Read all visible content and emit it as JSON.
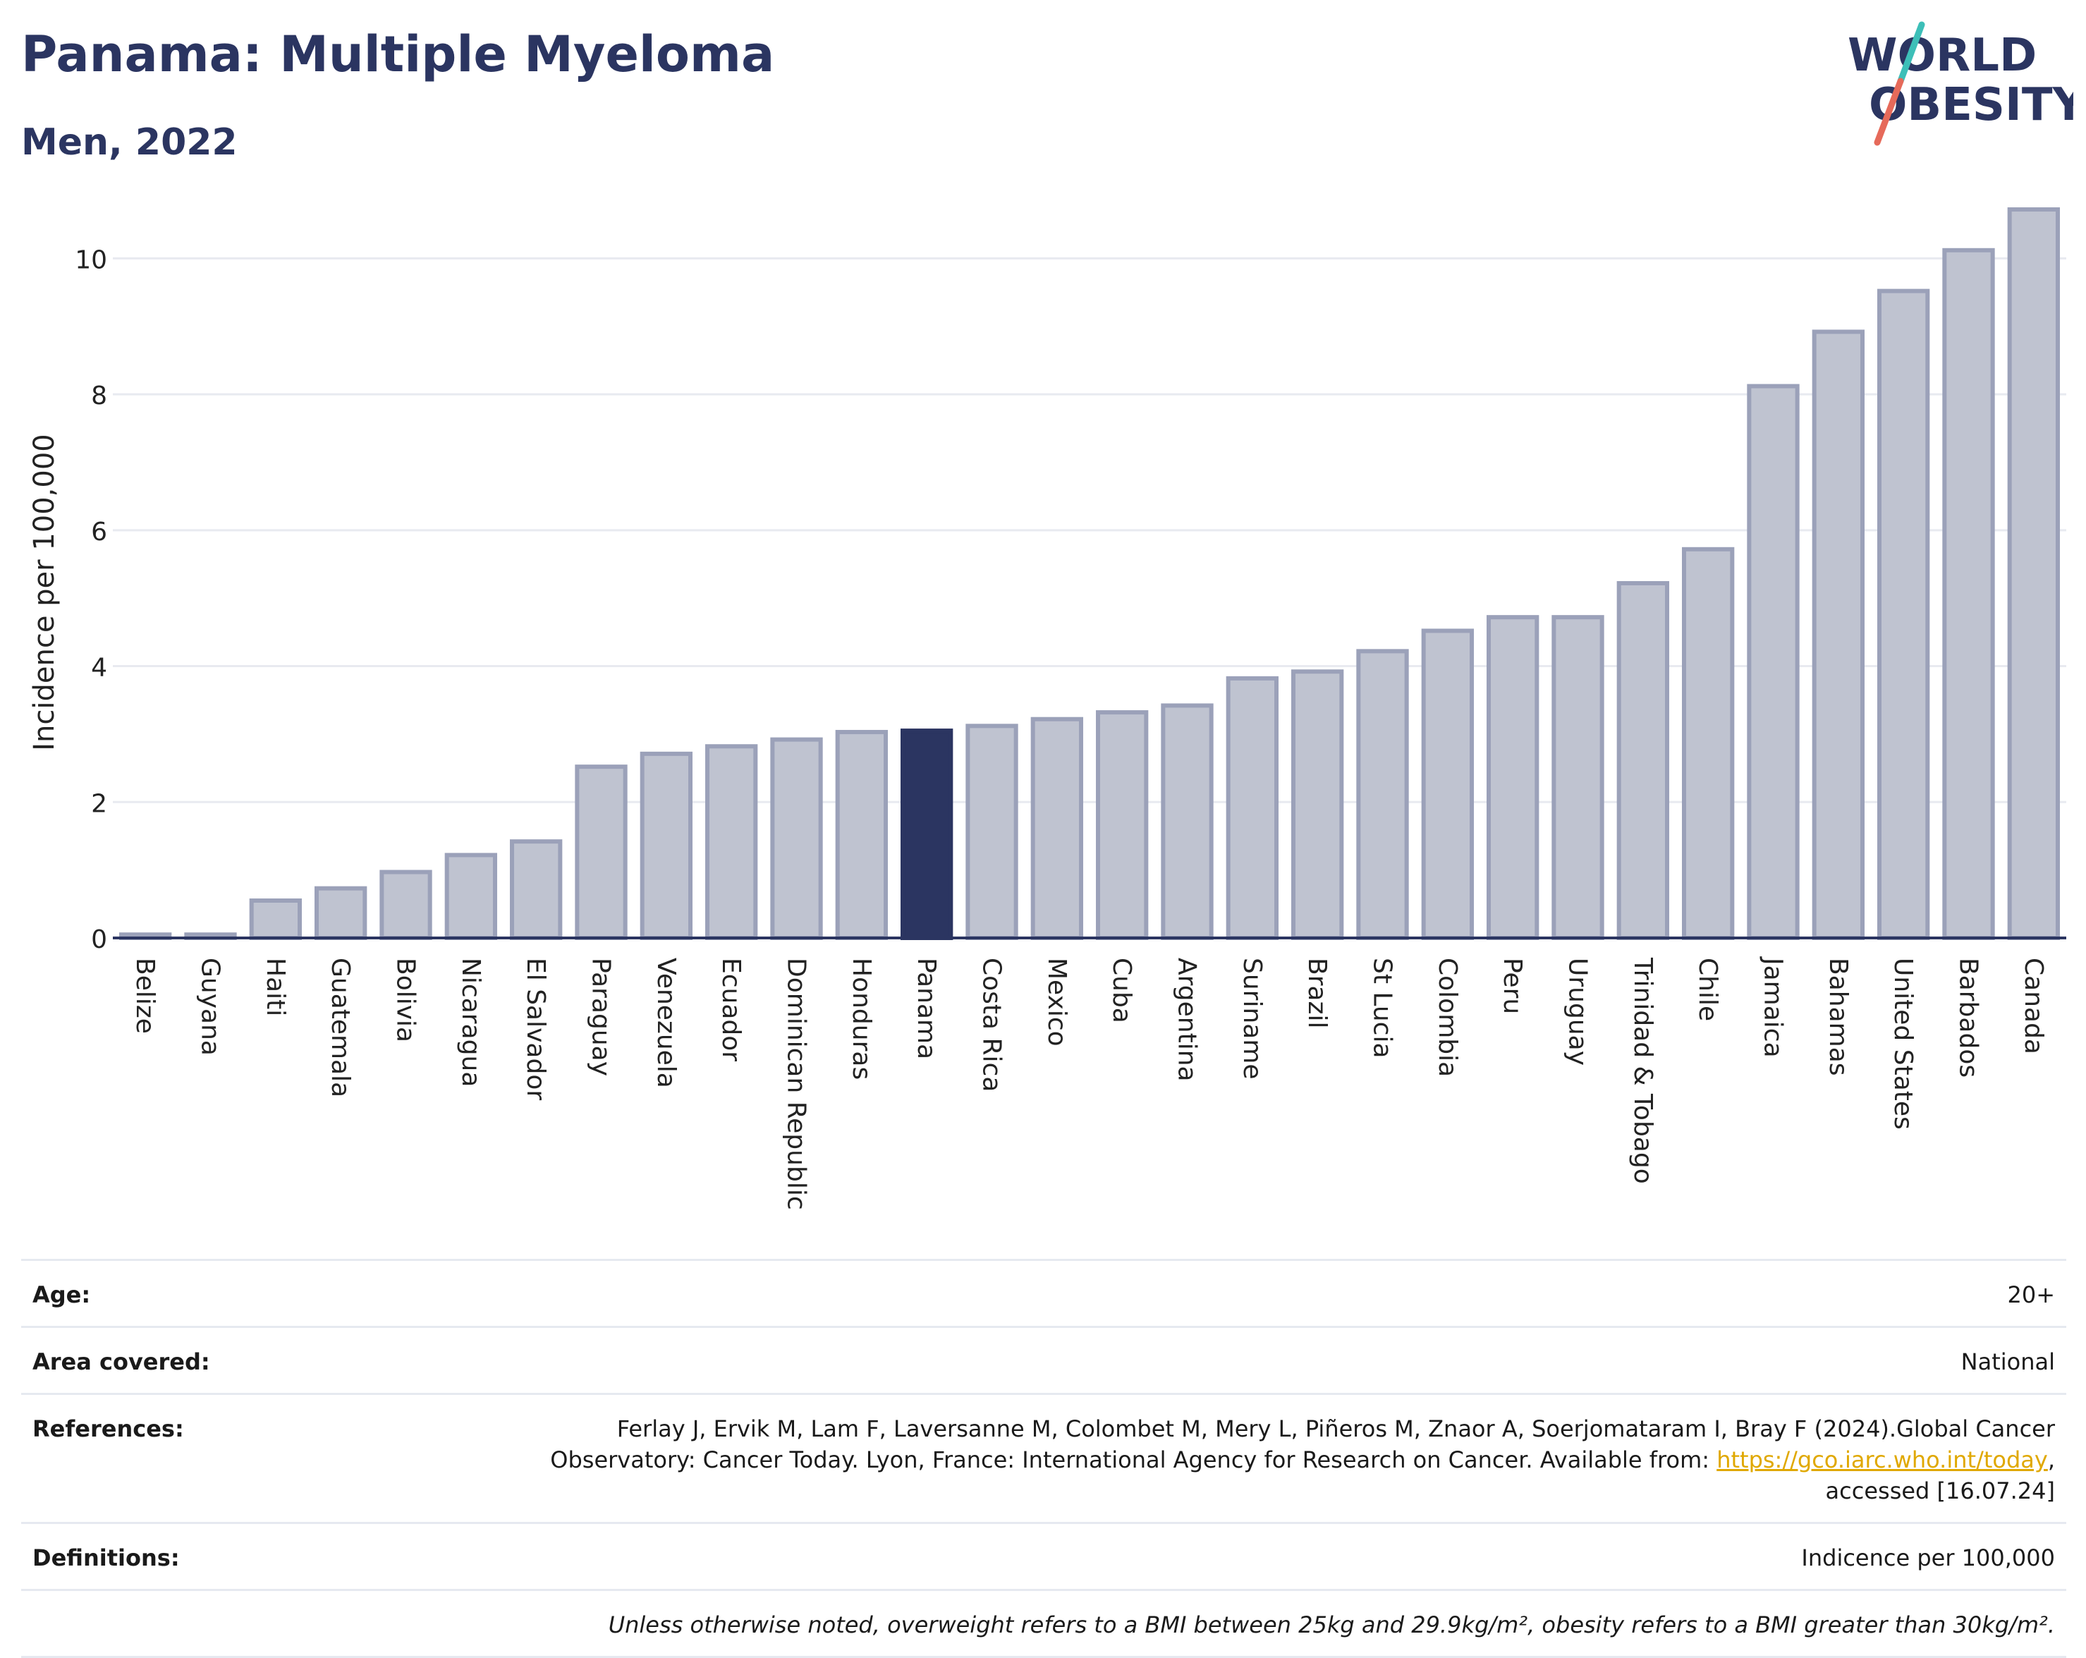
{
  "header": {
    "title": "Panama: Multiple Myeloma",
    "subtitle": "Men, 2022",
    "logo": {
      "line1": "WORLD",
      "line2": "OBESITY"
    }
  },
  "colors": {
    "title": "#2b3561",
    "bar": "#bfc3d0",
    "bar_border": "#9ba1b9",
    "highlight": "#2b3561",
    "link": "#e0a800",
    "logo_slash_teal": "#3dbfb8",
    "logo_slash_coral": "#e66a5a"
  },
  "chart_data": {
    "type": "bar",
    "ylabel": "Incidence per 100,000",
    "xlabel": "",
    "ylim": [
      0,
      11
    ],
    "yticks": [
      0,
      2,
      4,
      6,
      8,
      10
    ],
    "grid": true,
    "highlight": "Panama",
    "categories": [
      "Belize",
      "Guyana",
      "Haiti",
      "Guatemala",
      "Bolivia",
      "Nicaragua",
      "El Salvador",
      "Paraguay",
      "Venezuela",
      "Ecuador",
      "Dominican Republic",
      "Honduras",
      "Panama",
      "Costa Rica",
      "Mexico",
      "Cuba",
      "Argentina",
      "Suriname",
      "Brazil",
      "St Lucia",
      "Colombia",
      "Peru",
      "Uruguay",
      "Trinidad & Tobago",
      "Chile",
      "Jamaica",
      "Bahamas",
      "United States",
      "Barbados",
      "Canada"
    ],
    "values": [
      0.05,
      0.05,
      0.55,
      0.73,
      0.97,
      1.22,
      1.42,
      2.52,
      2.71,
      2.82,
      2.92,
      3.03,
      3.05,
      3.12,
      3.22,
      3.32,
      3.42,
      3.82,
      3.92,
      4.22,
      4.52,
      4.72,
      4.72,
      5.22,
      5.72,
      8.12,
      8.92,
      9.52,
      10.12,
      10.72
    ]
  },
  "meta": {
    "age_label": "Age:",
    "age_value": "20+",
    "area_label": "Area covered:",
    "area_value": "National",
    "references_label": "References:",
    "references_line1": "Ferlay J, Ervik M, Lam F, Laversanne M, Colombet M, Mery L, Piñeros M, Znaor A, Soerjomataram I, Bray F (2024).Global Cancer",
    "references_line2_prefix": "Observatory: Cancer Today. Lyon, France: International Agency for Research on Cancer. Available from: ",
    "references_link": "https://gco.iarc.who.int/today",
    "references_line2_suffix": ",",
    "references_line3": "accessed [16.07.24]",
    "definitions_label": "Definitions:",
    "definitions_value": "Indicence per 100,000",
    "note": "Unless otherwise noted, overweight refers to a BMI between 25kg and 29.9kg/m², obesity refers to a BMI greater than 30kg/m²."
  }
}
